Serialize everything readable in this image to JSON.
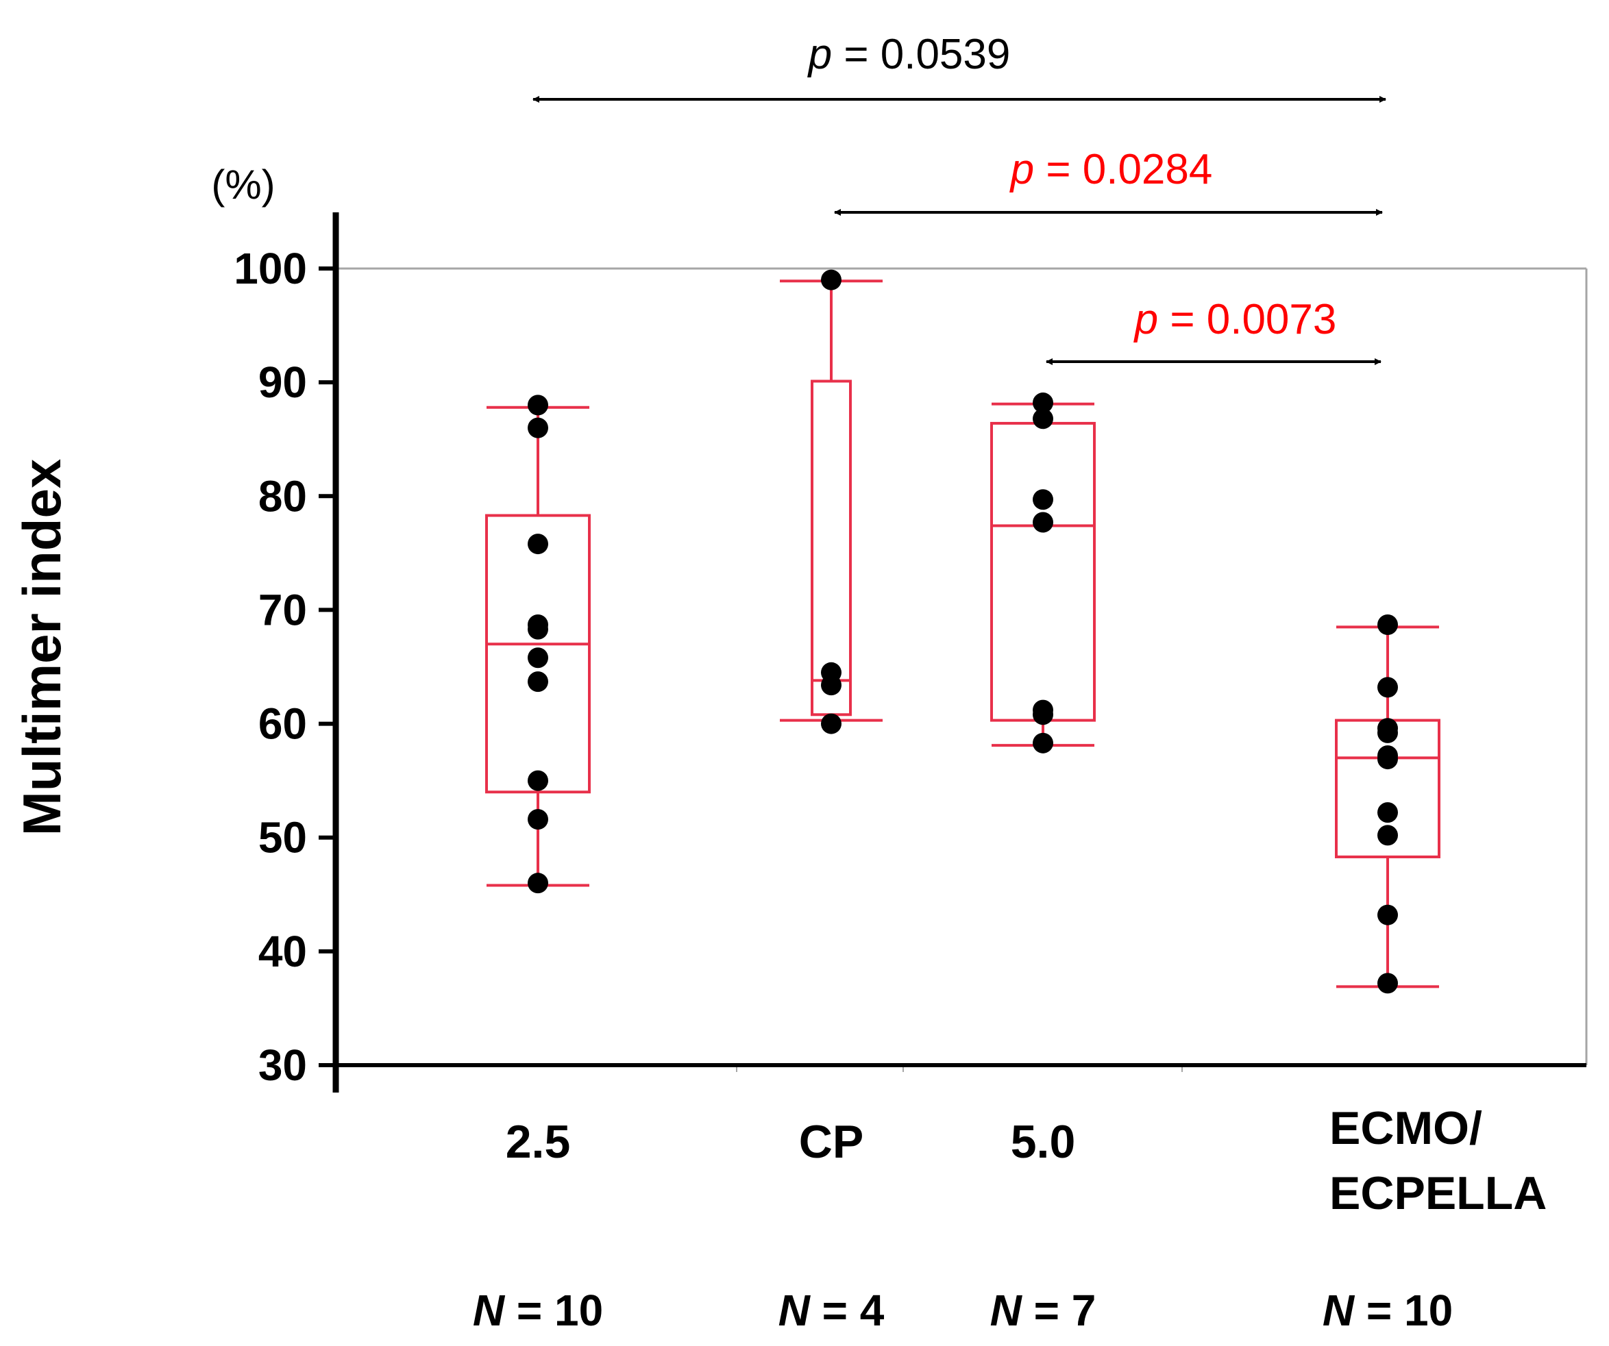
{
  "chart_data": {
    "type": "box",
    "ylabel": "Multimer index",
    "yunit": "(%)",
    "ylim": [
      30,
      100
    ],
    "yticks": [
      "100",
      "90",
      "80",
      "70",
      "60",
      "50",
      "40",
      "30"
    ],
    "grid": false,
    "groups": [
      {
        "label": "2.5",
        "label_lines": [
          "2.5"
        ],
        "n_label": "= 10",
        "whisker_low": 45.8,
        "q1": 54,
        "median": 67,
        "q3": 78.3,
        "whisker_high": 87.8,
        "points": [
          88,
          86,
          75.8,
          68.7,
          68.3,
          65.8,
          63.7,
          55,
          51.6,
          46
        ]
      },
      {
        "label": "CP",
        "label_lines": [
          "CP"
        ],
        "n_label": "= 4",
        "whisker_low": 60.3,
        "q1": 60.8,
        "median": 63.8,
        "q3": 90.1,
        "whisker_high": 98.9,
        "points": [
          99,
          64.5,
          63.4,
          60
        ]
      },
      {
        "label": "5.0",
        "label_lines": [
          "5.0"
        ],
        "n_label": "= 7",
        "whisker_low": 58.1,
        "q1": 60.3,
        "median": 77.4,
        "q3": 86.4,
        "whisker_high": 88.1,
        "points": [
          88.2,
          86.8,
          79.7,
          77.7,
          61.2,
          60.8,
          58.3
        ]
      },
      {
        "label": "ECMO/ECPELLA",
        "label_lines": [
          "ECMO/",
          "ECPELLA"
        ],
        "n_label": "= 10",
        "whisker_low": 36.9,
        "q1": 48.3,
        "median": 57,
        "q3": 60.3,
        "whisker_high": 68.5,
        "points": [
          68.7,
          63.2,
          59.6,
          59.2,
          57.2,
          56.9,
          52.2,
          50.2,
          43.2,
          37.2
        ]
      }
    ],
    "comparisons": [
      {
        "from": "2.5",
        "to": "ECMO/ECPELLA",
        "p_symbol": "p",
        "p_text": "= 0.0539",
        "significant": false
      },
      {
        "from": "CP",
        "to": "ECMO/ECPELLA",
        "p_symbol": "p",
        "p_text": "= 0.0284",
        "significant": true
      },
      {
        "from": "5.0",
        "to": "ECMO/ECPELLA",
        "p_symbol": "p",
        "p_text": "= 0.0073",
        "significant": true
      }
    ],
    "n_symbol": "N",
    "colors": {
      "box": "#e8304a",
      "point": "#000000",
      "axis": "#000000",
      "frame": "#a6a6a6",
      "arrow": "#000000",
      "p_significant": "#ff0000",
      "p_nonsignificant": "#000000",
      "text": "#000000"
    }
  }
}
